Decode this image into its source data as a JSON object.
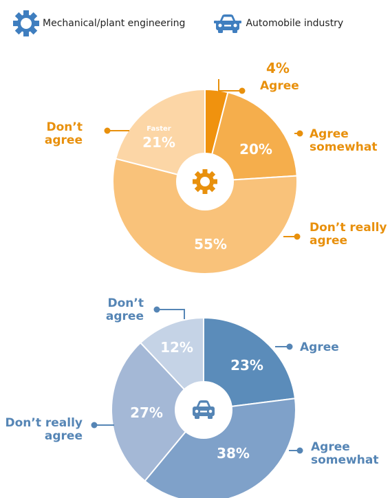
{
  "legend": {
    "items": [
      {
        "label": "Mechanical/plant engineering",
        "icon": "gear-icon",
        "color": "#3f7ebf"
      },
      {
        "label": "Automobile industry",
        "icon": "car-icon",
        "color": "#3f7ebf"
      }
    ]
  },
  "colors": {
    "mech_label": "#e8900c",
    "auto_label": "#5585b5"
  },
  "chart_data": [
    {
      "type": "pie",
      "group": "Mechanical/plant engineering",
      "categories": [
        "Agree",
        "Agree somewhat",
        "Don’t really agree",
        "Don’t agree"
      ],
      "values": [
        4,
        20,
        55,
        21
      ],
      "value_labels": [
        "4%",
        "20%",
        "55%",
        "21%"
      ],
      "slice_colors": [
        "#f0920e",
        "#f5ae4c",
        "#f9c27a",
        "#fcd6a6"
      ],
      "annotations": [
        "Faster"
      ],
      "center_icon": "gear-icon"
    },
    {
      "type": "pie",
      "group": "Automobile industry",
      "categories": [
        "Agree",
        "Agree somewhat",
        "Don’t really agree",
        "Don’t agree"
      ],
      "values": [
        23,
        38,
        27,
        12
      ],
      "value_labels": [
        "23%",
        "38%",
        "27%",
        "12%"
      ],
      "slice_colors": [
        "#5b8cba",
        "#7fa1c9",
        "#a4b8d6",
        "#c5d3e6"
      ],
      "center_icon": "car-icon"
    }
  ]
}
